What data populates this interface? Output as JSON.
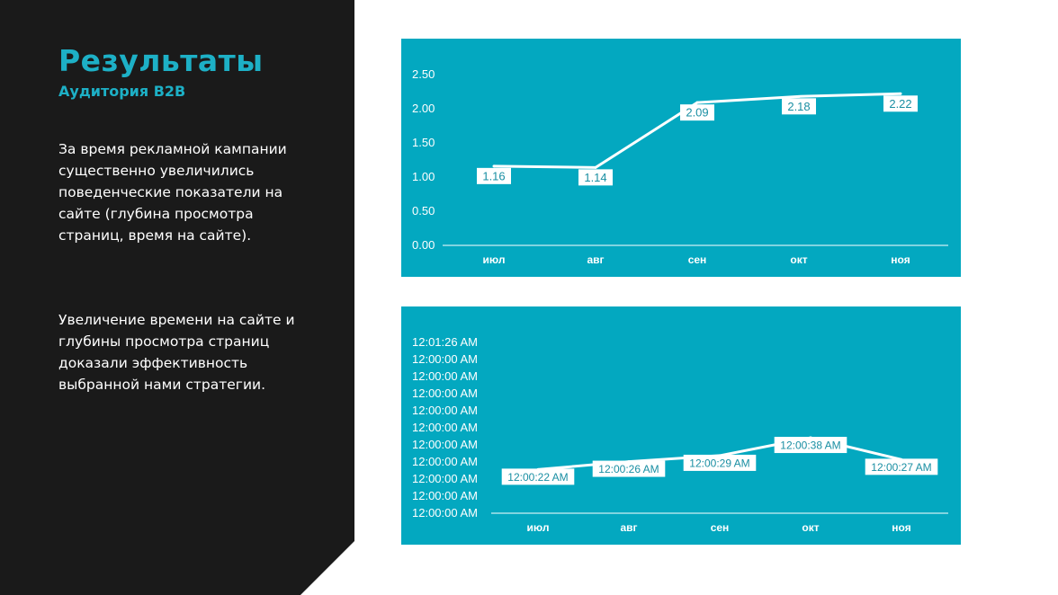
{
  "slide": {
    "title": "Результаты",
    "subtitle": "Аудитория B2B",
    "paragraph1": "За время рекламной кампании существенно увеличились поведенческие показатели на сайте (глубина просмотра страниц, время на сайте).",
    "paragraph2": "Увеличение времени на сайте и глубины просмотра страниц доказали эффективность выбранной нами стратегии."
  },
  "colors": {
    "panel": "#1a1a1a",
    "accent": "#1db0c6",
    "chart_bg": "#03a8c0",
    "line": "#ffffff"
  },
  "chart_data": [
    {
      "type": "line",
      "categories": [
        "июл",
        "авг",
        "сен",
        "окт",
        "ноя"
      ],
      "values": [
        1.16,
        1.14,
        2.09,
        2.18,
        2.22
      ],
      "data_labels": [
        "1.16",
        "1.14",
        "2.09",
        "2.18",
        "2.22"
      ],
      "y_ticks": [
        "0.00",
        "0.50",
        "1.00",
        "1.50",
        "2.00",
        "2.50"
      ],
      "ylim": [
        0,
        2.5
      ],
      "title": "",
      "xlabel": "",
      "ylabel": "",
      "grid": false,
      "legend": "none"
    },
    {
      "type": "line",
      "categories": [
        "июл",
        "авг",
        "сен",
        "окт",
        "ноя"
      ],
      "values": [
        22,
        26,
        29,
        38,
        27
      ],
      "value_unit": "seconds",
      "data_labels": [
        "12:00:22 AM",
        "12:00:26 AM",
        "12:00:29 AM",
        "12:00:38 AM",
        "12:00:27 AM"
      ],
      "y_ticks": [
        "12:00:00 AM",
        "12:00:00 AM",
        "12:00:00 AM",
        "12:00:00 AM",
        "12:00:00 AM",
        "12:00:00 AM",
        "12:00:00 AM",
        "12:00:00 AM",
        "12:00:00 AM",
        "12:00:00 AM",
        "12:01:26 AM"
      ],
      "ylim": [
        0,
        86
      ],
      "title": "",
      "xlabel": "",
      "ylabel": "",
      "grid": false,
      "legend": "none"
    }
  ]
}
